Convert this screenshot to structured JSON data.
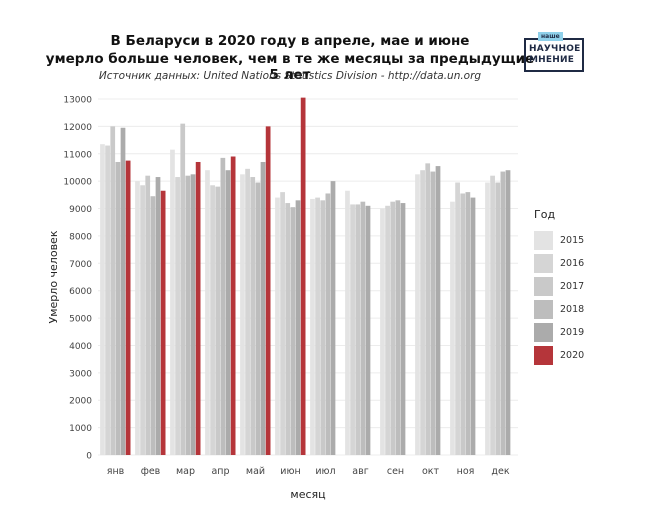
{
  "header": {
    "title_line1": "В Беларуси в 2020 году в апреле, мае и июне",
    "title_line2": "умерло больше человек, чем в те же месяцы за предыдущие 5 лет",
    "source": "Источник данных: United Nations Statistics Division - http://data.un.org"
  },
  "logo": {
    "tag": "наше",
    "line1": "НАУЧНОЕ",
    "line2": "МНЕНИЕ",
    "color": "#1f2a44",
    "tag_color": "#8fd0ea"
  },
  "chart_data": {
    "type": "bar",
    "xlabel": "месяц",
    "ylabel": "Умерло человек",
    "ylim": [
      0,
      13000
    ],
    "yticks": [
      0,
      1000,
      2000,
      3000,
      4000,
      5000,
      6000,
      7000,
      8000,
      9000,
      10000,
      11000,
      12000,
      13000
    ],
    "categories": [
      "янв",
      "фев",
      "мар",
      "апр",
      "май",
      "июн",
      "июл",
      "авг",
      "сен",
      "окт",
      "ноя",
      "дек"
    ],
    "legend_title": "Год",
    "legend_position": "right",
    "grid": true,
    "series": [
      {
        "name": "2015",
        "color": "#e3e3e3",
        "values": [
          11350,
          10000,
          11150,
          10400,
          10250,
          9400,
          9350,
          9650,
          9000,
          10250,
          9250,
          9950
        ]
      },
      {
        "name": "2016",
        "color": "#d5d5d5",
        "values": [
          11300,
          9850,
          10150,
          9850,
          10450,
          9600,
          9400,
          9150,
          9100,
          10400,
          9950,
          10200
        ]
      },
      {
        "name": "2017",
        "color": "#c9c9c9",
        "values": [
          12000,
          10200,
          12100,
          9800,
          10150,
          9200,
          9300,
          9150,
          9250,
          10650,
          9550,
          9950
        ]
      },
      {
        "name": "2018",
        "color": "#bdbdbd",
        "values": [
          10700,
          9450,
          10200,
          10850,
          9950,
          9050,
          9550,
          9250,
          9300,
          10350,
          9600,
          10350
        ]
      },
      {
        "name": "2019",
        "color": "#ababab",
        "values": [
          11950,
          10150,
          10250,
          10400,
          10700,
          9300,
          10000,
          9100,
          9200,
          10550,
          9400,
          10400
        ]
      },
      {
        "name": "2020",
        "color": "#b5353a",
        "values": [
          10750,
          9650,
          10700,
          10900,
          12000,
          13050,
          null,
          null,
          null,
          null,
          null,
          null
        ]
      }
    ]
  }
}
